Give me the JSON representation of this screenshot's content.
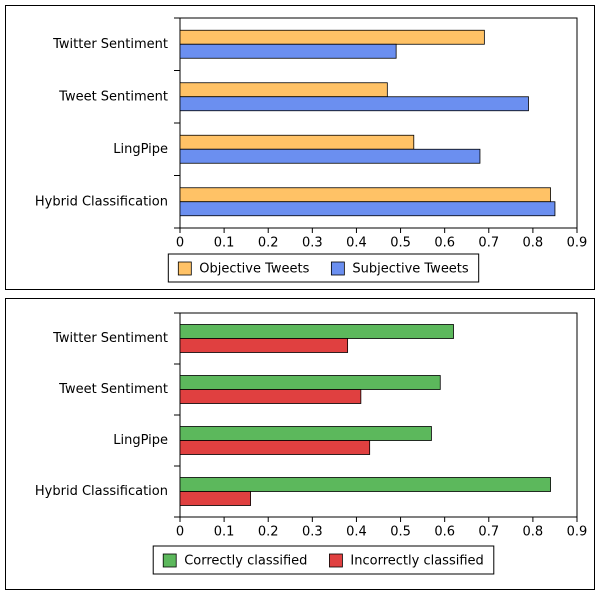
{
  "chart_data": [
    {
      "type": "bar",
      "orientation": "horizontal",
      "categories": [
        "Twitter Sentiment",
        "Tweet Sentiment",
        "LingPipe",
        "Hybrid Classification"
      ],
      "series": [
        {
          "name": "Objective Tweets",
          "color": "#ffc266",
          "values": [
            0.69,
            0.47,
            0.53,
            0.84
          ]
        },
        {
          "name": "Subjective Tweets",
          "color": "#6b8ff0",
          "values": [
            0.49,
            0.79,
            0.68,
            0.85
          ]
        }
      ],
      "xlim": [
        0,
        0.9
      ],
      "xticks": [
        0,
        0.1,
        0.2,
        0.3,
        0.4,
        0.5,
        0.6,
        0.7,
        0.8,
        0.9
      ],
      "legend": "bottom"
    },
    {
      "type": "bar",
      "orientation": "horizontal",
      "categories": [
        "Twitter Sentiment",
        "Tweet Sentiment",
        "LingPipe",
        "Hybrid Classification"
      ],
      "series": [
        {
          "name": "Correctly classified",
          "color": "#5cb85c",
          "values": [
            0.62,
            0.59,
            0.57,
            0.84
          ]
        },
        {
          "name": "Incorrectly classified",
          "color": "#e04040",
          "values": [
            0.38,
            0.41,
            0.43,
            0.16
          ]
        }
      ],
      "xlim": [
        0,
        0.9
      ],
      "xticks": [
        0,
        0.1,
        0.2,
        0.3,
        0.4,
        0.5,
        0.6,
        0.7,
        0.8,
        0.9
      ],
      "legend": "bottom"
    }
  ]
}
